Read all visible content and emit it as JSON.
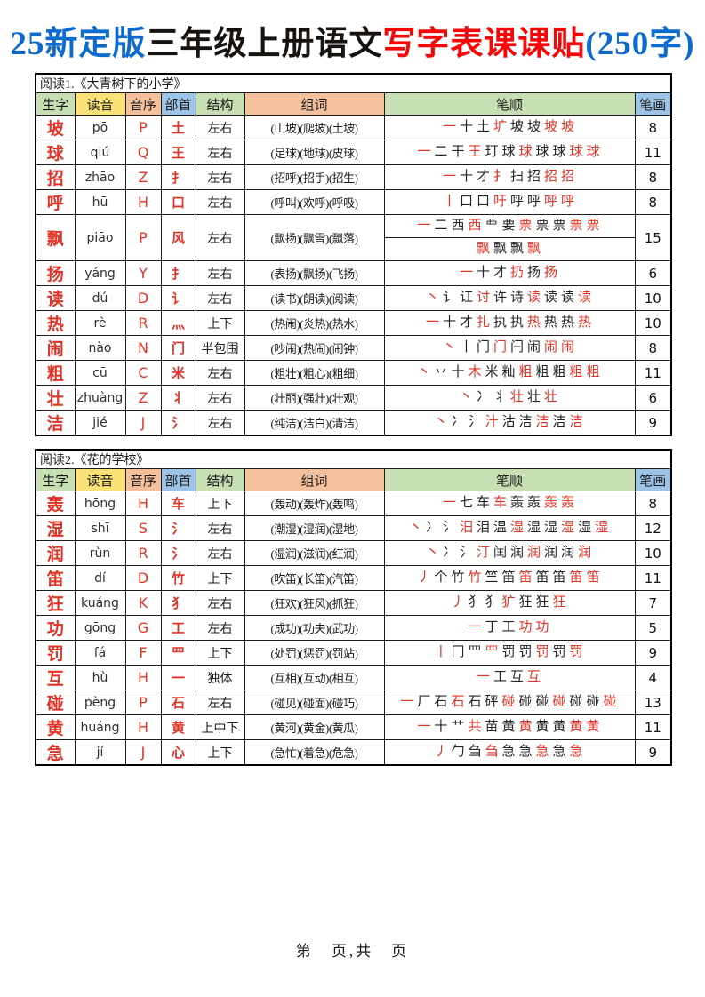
{
  "title": {
    "prefix": "25新定版",
    "middle": "三年级上册语文",
    "highlight": "写字表课课贴",
    "suffix": "(250字)"
  },
  "colors": {
    "title_blue": "#0d6bcd",
    "title_red": "#f40708",
    "char_red": "#e23327",
    "header_green": "#c6e0b3",
    "header_yellow": "#fbe277",
    "header_peach": "#f5c09c",
    "header_blue": "#9dc3e6"
  },
  "columns": [
    "生字",
    "读音",
    "音序",
    "部首",
    "结构",
    "组词",
    "笔顺",
    "笔画"
  ],
  "tables": [
    {
      "caption": "阅读1.《大青树下的小学》",
      "rows": [
        {
          "char": "坡",
          "pinyin": "pō",
          "initial": "P",
          "radical": "土",
          "structure": "左右",
          "words": "(山坡)(爬坡)(土坡)",
          "strokes": [
            [
              "一",
              "十",
              "土",
              "圹",
              "坡",
              "坡",
              "坡",
              "坡"
            ]
          ],
          "count": 8
        },
        {
          "char": "球",
          "pinyin": "qiú",
          "initial": "Q",
          "radical": "王",
          "structure": "左右",
          "words": "(足球)(地球)(皮球)",
          "strokes": [
            [
              "一",
              "二",
              "干",
              "王",
              "玎",
              "球",
              "球",
              "球",
              "球",
              "球",
              "球"
            ]
          ],
          "count": 11
        },
        {
          "char": "招",
          "pinyin": "zhāo",
          "initial": "Z",
          "radical": "扌",
          "structure": "左右",
          "words": "(招呼)(招手)(招生)",
          "strokes": [
            [
              "一",
              "十",
              "才",
              "扌",
              "扫",
              "招",
              "招",
              "招"
            ]
          ],
          "count": 8
        },
        {
          "char": "呼",
          "pinyin": "hū",
          "initial": "H",
          "radical": "口",
          "structure": "左右",
          "words": "(呼叫)(欢呼)(呼吸)",
          "strokes": [
            [
              "丨",
              "口",
              "口",
              "吁",
              "呼",
              "呼",
              "呼",
              "呼"
            ]
          ],
          "count": 8
        },
        {
          "char": "飘",
          "pinyin": "piāo",
          "initial": "P",
          "radical": "风",
          "structure": "左右",
          "words": "(飘扬)(飘雪)(飘落)",
          "strokes": [
            [
              "一",
              "二",
              "西",
              "西",
              "覀",
              "要",
              "票",
              "票",
              "票",
              "票",
              "票"
            ],
            [
              "飘",
              "飘",
              "飘",
              "飘"
            ]
          ],
          "count": 15
        },
        {
          "char": "扬",
          "pinyin": "yáng",
          "initial": "Y",
          "radical": "扌",
          "structure": "左右",
          "words": "(表扬)(飘扬)(飞扬)",
          "strokes": [
            [
              "一",
              "十",
              "才",
              "扔",
              "扬",
              "扬"
            ]
          ],
          "count": 6
        },
        {
          "char": "读",
          "pinyin": "dú",
          "initial": "D",
          "radical": "讠",
          "structure": "左右",
          "words": "(读书)(朗读)(阅读)",
          "strokes": [
            [
              "丶",
              "讠",
              "讧",
              "讨",
              "许",
              "诗",
              "读",
              "读",
              "读",
              "读"
            ]
          ],
          "count": 10
        },
        {
          "char": "热",
          "pinyin": "rè",
          "initial": "R",
          "radical": "灬",
          "structure": "上下",
          "words": "(热闹)(炎热)(热水)",
          "strokes": [
            [
              "一",
              "十",
              "才",
              "扎",
              "执",
              "执",
              "热",
              "热",
              "热",
              "热"
            ]
          ],
          "count": 10
        },
        {
          "char": "闹",
          "pinyin": "nào",
          "initial": "N",
          "radical": "门",
          "structure": "半包围",
          "words": "(吵闹)(热闹)(闹钟)",
          "strokes": [
            [
              "丶",
              "丨",
              "门",
              "门",
              "闩",
              "闹",
              "闹",
              "闹"
            ]
          ],
          "count": 8
        },
        {
          "char": "粗",
          "pinyin": "cū",
          "initial": "C",
          "radical": "米",
          "structure": "左右",
          "words": "(粗壮)(粗心)(粗细)",
          "strokes": [
            [
              "丶",
              "丷",
              "十",
              "木",
              "米",
              "籼",
              "粗",
              "粗",
              "粗",
              "粗",
              "粗"
            ]
          ],
          "count": 11
        },
        {
          "char": "壮",
          "pinyin": "zhuàng",
          "initial": "Z",
          "radical": "丬",
          "structure": "左右",
          "words": "(壮丽)(强壮)(壮观)",
          "strokes": [
            [
              "丶",
              "冫",
              "丬",
              "壮",
              "壮",
              "壮"
            ]
          ],
          "count": 6
        },
        {
          "char": "洁",
          "pinyin": "jié",
          "initial": "J",
          "radical": "氵",
          "structure": "左右",
          "words": "(纯洁)(洁白)(清洁)",
          "strokes": [
            [
              "丶",
              "冫",
              "氵",
              "汁",
              "沽",
              "洁",
              "洁",
              "洁",
              "洁"
            ]
          ],
          "count": 9
        }
      ]
    },
    {
      "caption": "阅读2.《花的学校》",
      "rows": [
        {
          "char": "轰",
          "pinyin": "hōng",
          "initial": "H",
          "radical": "车",
          "structure": "上下",
          "words": "(轰动)(轰炸)(轰鸣)",
          "strokes": [
            [
              "一",
              "七",
              "车",
              "车",
              "轰",
              "轰",
              "轰",
              "轰"
            ]
          ],
          "count": 8
        },
        {
          "char": "湿",
          "pinyin": "shī",
          "initial": "S",
          "radical": "氵",
          "structure": "左右",
          "words": "(潮湿)(湿润)(湿地)",
          "strokes": [
            [
              "丶",
              "冫",
              "氵",
              "汨",
              "泪",
              "温",
              "湿",
              "湿",
              "湿",
              "湿",
              "湿",
              "湿"
            ]
          ],
          "count": 12
        },
        {
          "char": "润",
          "pinyin": "rùn",
          "initial": "R",
          "radical": "氵",
          "structure": "左右",
          "words": "(湿润)(滋润)(红润)",
          "strokes": [
            [
              "丶",
              "冫",
              "氵",
              "汀",
              "闰",
              "润",
              "润",
              "润",
              "润",
              "润"
            ]
          ],
          "count": 10
        },
        {
          "char": "笛",
          "pinyin": "dí",
          "initial": "D",
          "radical": "竹",
          "structure": "上下",
          "words": "(吹笛)(长笛)(汽笛)",
          "strokes": [
            [
              "丿",
              "个",
              "竹",
              "竹",
              "竺",
              "笛",
              "笛",
              "笛",
              "笛",
              "笛",
              "笛"
            ]
          ],
          "count": 11
        },
        {
          "char": "狂",
          "pinyin": "kuáng",
          "initial": "K",
          "radical": "犭",
          "structure": "左右",
          "words": "(狂欢)(狂风)(抓狂)",
          "strokes": [
            [
              "丿",
              "犭",
              "犭",
              "犷",
              "狂",
              "狂",
              "狂"
            ]
          ],
          "count": 7
        },
        {
          "char": "功",
          "pinyin": "gōng",
          "initial": "G",
          "radical": "工",
          "structure": "左右",
          "words": "(成功)(功夫)(武功)",
          "strokes": [
            [
              "一",
              "丁",
              "工",
              "功",
              "功"
            ]
          ],
          "count": 5
        },
        {
          "char": "罚",
          "pinyin": "fá",
          "initial": "F",
          "radical": "罒",
          "structure": "上下",
          "words": "(处罚)(惩罚)(罚站)",
          "strokes": [
            [
              "丨",
              "冂",
              "罒",
              "罒",
              "罚",
              "罚",
              "罚",
              "罚",
              "罚"
            ]
          ],
          "count": 9
        },
        {
          "char": "互",
          "pinyin": "hù",
          "initial": "H",
          "radical": "一",
          "structure": "独体",
          "words": "(互相)(互动)(相互)",
          "strokes": [
            [
              "一",
              "工",
              "互",
              "互"
            ]
          ],
          "count": 4
        },
        {
          "char": "碰",
          "pinyin": "pèng",
          "initial": "P",
          "radical": "石",
          "structure": "左右",
          "words": "(碰见)(碰面)(碰巧)",
          "strokes": [
            [
              "一",
              "厂",
              "石",
              "石",
              "石",
              "砰",
              "碰",
              "碰",
              "碰",
              "碰",
              "碰",
              "碰",
              "碰"
            ]
          ],
          "count": 13
        },
        {
          "char": "黄",
          "pinyin": "huáng",
          "initial": "H",
          "radical": "黄",
          "structure": "上中下",
          "words": "(黄河)(黄金)(黄瓜)",
          "strokes": [
            [
              "一",
              "十",
              "艹",
              "共",
              "苗",
              "黄",
              "黄",
              "黄",
              "黄",
              "黄",
              "黄"
            ]
          ],
          "count": 11
        },
        {
          "char": "急",
          "pinyin": "jí",
          "initial": "J",
          "radical": "心",
          "structure": "上下",
          "words": "(急忙)(着急)(危急)",
          "strokes": [
            [
              "丿",
              "勹",
              "刍",
              "刍",
              "急",
              "急",
              "急",
              "急",
              "急"
            ]
          ],
          "count": 9
        }
      ]
    }
  ],
  "footer": {
    "text": "第　页,共　页"
  }
}
